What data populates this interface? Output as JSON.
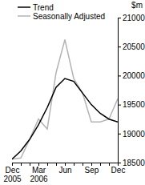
{
  "chart_data": {
    "type": "line",
    "y_label": "$m",
    "categories": [
      "Dec 2005",
      null,
      null,
      "Mar 2006",
      null,
      null,
      "Jun",
      null,
      null,
      "Sep",
      null,
      null,
      "Dec"
    ],
    "series": [
      {
        "name": "Trend",
        "color": "#000000",
        "values": [
          18560,
          18700,
          18900,
          19150,
          19450,
          19800,
          19950,
          19900,
          19700,
          19500,
          19350,
          19250,
          19200
        ]
      },
      {
        "name": "Seasonally Adjusted",
        "color": "#b4b4b4",
        "values": [
          18560,
          18580,
          18900,
          19250,
          19080,
          20050,
          20620,
          19950,
          19700,
          19200,
          19200,
          19250,
          19600
        ]
      }
    ],
    "ylim": [
      18500,
      21000
    ],
    "yticks": [
      18500,
      19000,
      19500,
      20000,
      20500,
      21000
    ],
    "legend": "top-left"
  }
}
